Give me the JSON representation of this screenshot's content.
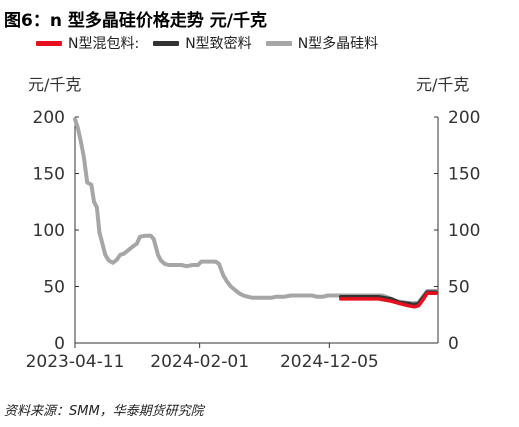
{
  "title": "图6：n 型多晶硅价格走势 元/千克",
  "source": "资料来源：SMM，华泰期货研究院",
  "chart_data": {
    "type": "line",
    "y_unit_left": "元/千克",
    "y_unit_right": "元/千克",
    "ylim": [
      0,
      200
    ],
    "yticks": [
      0,
      50,
      100,
      150,
      200
    ],
    "xlim": [
      "2023-04-11",
      "2025-08-20"
    ],
    "xticks": [
      "2023-04-11",
      "2024-02-01",
      "2024-12-05"
    ],
    "grid": false,
    "legend_position": "top",
    "series": [
      {
        "name": "N型混包料:",
        "color": "#e8101e",
        "points": [
          [
            "2025-01-01",
            39
          ],
          [
            "2025-02-15",
            39
          ],
          [
            "2025-04-01",
            39
          ],
          [
            "2025-05-01",
            37
          ],
          [
            "2025-05-20",
            35
          ],
          [
            "2025-06-10",
            33
          ],
          [
            "2025-06-25",
            32
          ],
          [
            "2025-07-05",
            33
          ],
          [
            "2025-07-15",
            38
          ],
          [
            "2025-07-25",
            44
          ],
          [
            "2025-08-05",
            44
          ],
          [
            "2025-08-15",
            44
          ]
        ]
      },
      {
        "name": "N型致密料",
        "color": "#333333",
        "points": [
          [
            "2025-01-01",
            41
          ],
          [
            "2025-02-15",
            41
          ],
          [
            "2025-04-01",
            41
          ],
          [
            "2025-05-01",
            39
          ],
          [
            "2025-05-20",
            36
          ],
          [
            "2025-06-10",
            35
          ],
          [
            "2025-06-25",
            34
          ],
          [
            "2025-07-05",
            35
          ],
          [
            "2025-07-15",
            40
          ],
          [
            "2025-07-25",
            45
          ],
          [
            "2025-08-05",
            45
          ],
          [
            "2025-08-15",
            45
          ]
        ]
      },
      {
        "name": "N型多晶硅料",
        "color": "#a6a6a6",
        "points": [
          [
            "2023-04-11",
            198
          ],
          [
            "2023-04-18",
            190
          ],
          [
            "2023-04-25",
            178
          ],
          [
            "2023-05-02",
            165
          ],
          [
            "2023-05-10",
            142
          ],
          [
            "2023-05-20",
            140
          ],
          [
            "2023-05-26",
            125
          ],
          [
            "2023-06-02",
            120
          ],
          [
            "2023-06-08",
            98
          ],
          [
            "2023-06-15",
            88
          ],
          [
            "2023-06-22",
            78
          ],
          [
            "2023-06-30",
            73
          ],
          [
            "2023-07-10",
            71
          ],
          [
            "2023-07-20",
            74
          ],
          [
            "2023-07-27",
            78
          ],
          [
            "2023-08-05",
            79
          ],
          [
            "2023-08-15",
            82
          ],
          [
            "2023-08-25",
            85
          ],
          [
            "2023-09-05",
            88
          ],
          [
            "2023-09-12",
            94
          ],
          [
            "2023-09-25",
            95
          ],
          [
            "2023-10-08",
            95
          ],
          [
            "2023-10-15",
            92
          ],
          [
            "2023-10-25",
            78
          ],
          [
            "2023-11-01",
            73
          ],
          [
            "2023-11-10",
            70
          ],
          [
            "2023-11-20",
            69
          ],
          [
            "2023-12-05",
            69
          ],
          [
            "2023-12-20",
            69
          ],
          [
            "2024-01-01",
            68
          ],
          [
            "2024-01-15",
            69
          ],
          [
            "2024-01-28",
            69
          ],
          [
            "2024-02-05",
            72
          ],
          [
            "2024-02-25",
            72
          ],
          [
            "2024-03-10",
            72
          ],
          [
            "2024-03-18",
            70
          ],
          [
            "2024-03-28",
            60
          ],
          [
            "2024-04-05",
            55
          ],
          [
            "2024-04-15",
            50
          ],
          [
            "2024-04-25",
            47
          ],
          [
            "2024-05-05",
            44
          ],
          [
            "2024-05-15",
            42
          ],
          [
            "2024-05-25",
            41
          ],
          [
            "2024-06-05",
            40
          ],
          [
            "2024-06-20",
            40
          ],
          [
            "2024-07-05",
            40
          ],
          [
            "2024-07-20",
            40
          ],
          [
            "2024-08-01",
            41
          ],
          [
            "2024-08-20",
            41
          ],
          [
            "2024-09-05",
            42
          ],
          [
            "2024-09-25",
            42
          ],
          [
            "2024-10-10",
            42
          ],
          [
            "2024-10-25",
            42
          ],
          [
            "2024-11-05",
            41
          ],
          [
            "2024-11-20",
            41
          ],
          [
            "2024-12-01",
            42
          ],
          [
            "2024-12-20",
            42
          ],
          [
            "2025-01-15",
            42
          ],
          [
            "2025-02-15",
            42
          ],
          [
            "2025-03-15",
            42
          ],
          [
            "2025-04-10",
            42
          ],
          [
            "2025-04-25",
            40
          ],
          [
            "2025-05-15",
            37
          ],
          [
            "2025-06-01",
            36
          ],
          [
            "2025-06-20",
            35
          ],
          [
            "2025-07-05",
            36
          ],
          [
            "2025-07-15",
            41
          ],
          [
            "2025-07-25",
            46
          ],
          [
            "2025-08-05",
            46
          ],
          [
            "2025-08-15",
            46
          ]
        ]
      }
    ]
  }
}
